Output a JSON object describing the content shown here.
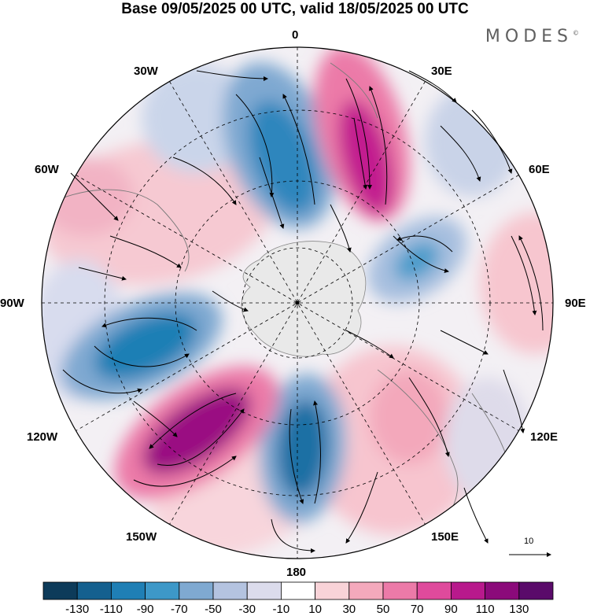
{
  "title": "Base 09/05/2025 00 UTC, valid 18/05/2025 00 UTC",
  "brand": "MODES",
  "brand_mark": "©",
  "longitude_labels": {
    "top": "0",
    "ne": "30E",
    "ene": "60E",
    "east": "90E",
    "ese": "120E",
    "se": "150E",
    "bottom": "180",
    "sw": "150W",
    "wsw": "120W",
    "west": "90W",
    "wnw": "60W",
    "nw": "30W"
  },
  "vector_reference": "10",
  "colorbar": {
    "labels": [
      "-130",
      "-110",
      "-90",
      "-70",
      "-50",
      "-30",
      "-10",
      "10",
      "30",
      "50",
      "70",
      "90",
      "110",
      "130"
    ],
    "colors": [
      "#0d3b5a",
      "#14608f",
      "#1f7fb5",
      "#3d98c8",
      "#7fa9d1",
      "#b4c3e0",
      "#dcdcec",
      "#ffffff",
      "#f9d3d8",
      "#f4a9bc",
      "#ec7aa8",
      "#df4a9c",
      "#b8198c",
      "#8b0a7a",
      "#5a0a6a"
    ]
  },
  "anomaly_centers": [
    {
      "type": "negative",
      "value": -110,
      "sector": "30W"
    },
    {
      "type": "positive",
      "value": 90,
      "sector": "30E"
    },
    {
      "type": "negative",
      "value": -70,
      "sector": "60E-90E"
    },
    {
      "type": "positive",
      "value": 50,
      "sector": "90E"
    },
    {
      "type": "negative",
      "value": -110,
      "sector": "90W-120W"
    },
    {
      "type": "positive",
      "value": 130,
      "sector": "150W"
    },
    {
      "type": "negative",
      "value": -130,
      "sector": "180"
    },
    {
      "type": "positive",
      "value": 50,
      "sector": "150E"
    },
    {
      "type": "positive",
      "value": 30,
      "sector": "60W"
    }
  ]
}
